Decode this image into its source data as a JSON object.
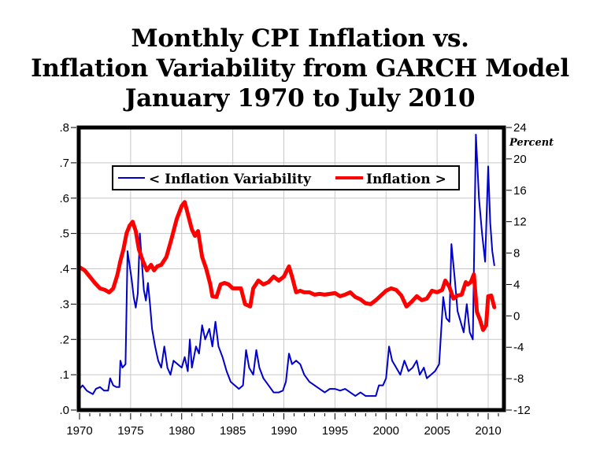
{
  "chart_data": {
    "type": "line",
    "title": [
      "Monthly CPI Inflation vs.",
      "Inflation Variability from GARCH Model",
      "January 1970 to July 2010"
    ],
    "xlabel": "",
    "xlim": [
      1970,
      2011.5
    ],
    "x_ticks": [
      "1970",
      "1975",
      "1980",
      "1985",
      "1990",
      "1995",
      "2000",
      "2005",
      "2010"
    ],
    "left_axis": {
      "label": "",
      "ylim": [
        0,
        0.8
      ],
      "ticks": [
        ".0",
        ".1",
        ".2",
        ".3",
        ".4",
        ".5",
        ".6",
        ".7",
        ".8"
      ]
    },
    "right_axis": {
      "label": "Percent",
      "ylim": [
        -12,
        24
      ],
      "ticks": [
        "-12",
        "-8",
        "-4",
        "0",
        "4",
        "8",
        "12",
        "16",
        "20",
        "24"
      ]
    },
    "grid": true,
    "legend_position": "top-left",
    "series": [
      {
        "name": "< Inflation Variability",
        "axis": "left",
        "color": "#0000cc",
        "points": [
          [
            1970.0,
            0.06
          ],
          [
            1970.3,
            0.07
          ],
          [
            1970.7,
            0.055
          ],
          [
            1971.0,
            0.05
          ],
          [
            1971.3,
            0.045
          ],
          [
            1971.6,
            0.06
          ],
          [
            1972.0,
            0.065
          ],
          [
            1972.4,
            0.055
          ],
          [
            1972.8,
            0.055
          ],
          [
            1973.0,
            0.09
          ],
          [
            1973.3,
            0.07
          ],
          [
            1973.6,
            0.065
          ],
          [
            1973.9,
            0.065
          ],
          [
            1974.0,
            0.14
          ],
          [
            1974.2,
            0.12
          ],
          [
            1974.5,
            0.13
          ],
          [
            1974.7,
            0.45
          ],
          [
            1974.9,
            0.41
          ],
          [
            1975.1,
            0.37
          ],
          [
            1975.3,
            0.32
          ],
          [
            1975.5,
            0.29
          ],
          [
            1975.7,
            0.33
          ],
          [
            1975.9,
            0.5
          ],
          [
            1976.1,
            0.42
          ],
          [
            1976.3,
            0.34
          ],
          [
            1976.5,
            0.31
          ],
          [
            1976.7,
            0.36
          ],
          [
            1976.9,
            0.3
          ],
          [
            1977.1,
            0.23
          ],
          [
            1977.4,
            0.18
          ],
          [
            1977.7,
            0.14
          ],
          [
            1978.0,
            0.12
          ],
          [
            1978.3,
            0.18
          ],
          [
            1978.6,
            0.12
          ],
          [
            1978.9,
            0.1
          ],
          [
            1979.2,
            0.14
          ],
          [
            1979.6,
            0.13
          ],
          [
            1980.0,
            0.12
          ],
          [
            1980.3,
            0.15
          ],
          [
            1980.6,
            0.11
          ],
          [
            1980.8,
            0.2
          ],
          [
            1981.0,
            0.12
          ],
          [
            1981.4,
            0.18
          ],
          [
            1981.7,
            0.16
          ],
          [
            1982.0,
            0.24
          ],
          [
            1982.3,
            0.2
          ],
          [
            1982.7,
            0.23
          ],
          [
            1983.0,
            0.18
          ],
          [
            1983.3,
            0.25
          ],
          [
            1983.6,
            0.18
          ],
          [
            1984.0,
            0.15
          ],
          [
            1984.4,
            0.11
          ],
          [
            1984.8,
            0.08
          ],
          [
            1985.2,
            0.07
          ],
          [
            1985.6,
            0.06
          ],
          [
            1986.0,
            0.07
          ],
          [
            1986.3,
            0.17
          ],
          [
            1986.6,
            0.12
          ],
          [
            1987.0,
            0.1
          ],
          [
            1987.3,
            0.17
          ],
          [
            1987.6,
            0.12
          ],
          [
            1988.0,
            0.09
          ],
          [
            1988.5,
            0.07
          ],
          [
            1989.0,
            0.05
          ],
          [
            1989.5,
            0.05
          ],
          [
            1989.9,
            0.055
          ],
          [
            1990.2,
            0.08
          ],
          [
            1990.5,
            0.16
          ],
          [
            1990.8,
            0.13
          ],
          [
            1991.2,
            0.14
          ],
          [
            1991.6,
            0.13
          ],
          [
            1992.0,
            0.1
          ],
          [
            1992.5,
            0.08
          ],
          [
            1993.0,
            0.07
          ],
          [
            1993.5,
            0.06
          ],
          [
            1994.0,
            0.05
          ],
          [
            1994.5,
            0.06
          ],
          [
            1995.0,
            0.06
          ],
          [
            1995.5,
            0.055
          ],
          [
            1996.0,
            0.06
          ],
          [
            1996.5,
            0.05
          ],
          [
            1997.0,
            0.04
          ],
          [
            1997.5,
            0.05
          ],
          [
            1998.0,
            0.04
          ],
          [
            1998.5,
            0.04
          ],
          [
            1999.0,
            0.04
          ],
          [
            1999.3,
            0.07
          ],
          [
            1999.7,
            0.07
          ],
          [
            2000.0,
            0.09
          ],
          [
            2000.3,
            0.18
          ],
          [
            2000.6,
            0.14
          ],
          [
            2001.0,
            0.12
          ],
          [
            2001.4,
            0.1
          ],
          [
            2001.8,
            0.14
          ],
          [
            2002.2,
            0.11
          ],
          [
            2002.6,
            0.12
          ],
          [
            2003.0,
            0.14
          ],
          [
            2003.3,
            0.1
          ],
          [
            2003.7,
            0.12
          ],
          [
            2004.0,
            0.09
          ],
          [
            2004.4,
            0.1
          ],
          [
            2004.8,
            0.11
          ],
          [
            2005.2,
            0.13
          ],
          [
            2005.6,
            0.32
          ],
          [
            2005.9,
            0.26
          ],
          [
            2006.2,
            0.25
          ],
          [
            2006.4,
            0.47
          ],
          [
            2006.7,
            0.38
          ],
          [
            2007.0,
            0.28
          ],
          [
            2007.3,
            0.25
          ],
          [
            2007.6,
            0.22
          ],
          [
            2007.9,
            0.3
          ],
          [
            2008.2,
            0.22
          ],
          [
            2008.5,
            0.2
          ],
          [
            2008.8,
            0.78
          ],
          [
            2009.1,
            0.6
          ],
          [
            2009.4,
            0.5
          ],
          [
            2009.7,
            0.42
          ],
          [
            2010.0,
            0.69
          ],
          [
            2010.2,
            0.53
          ],
          [
            2010.4,
            0.45
          ],
          [
            2010.6,
            0.41
          ]
        ]
      },
      {
        "name": "Inflation >",
        "axis": "right",
        "color": "#ff0000",
        "points": [
          [
            1970.0,
            6.2
          ],
          [
            1970.5,
            5.8
          ],
          [
            1971.0,
            5.0
          ],
          [
            1971.5,
            4.2
          ],
          [
            1972.0,
            3.5
          ],
          [
            1972.5,
            3.3
          ],
          [
            1972.9,
            3.0
          ],
          [
            1973.3,
            3.5
          ],
          [
            1973.7,
            5.2
          ],
          [
            1974.0,
            7.0
          ],
          [
            1974.3,
            8.5
          ],
          [
            1974.6,
            10.5
          ],
          [
            1974.9,
            11.5
          ],
          [
            1975.2,
            12.0
          ],
          [
            1975.5,
            10.8
          ],
          [
            1975.8,
            8.5
          ],
          [
            1976.2,
            7.0
          ],
          [
            1976.6,
            5.8
          ],
          [
            1977.0,
            6.5
          ],
          [
            1977.3,
            5.8
          ],
          [
            1977.6,
            6.3
          ],
          [
            1978.0,
            6.5
          ],
          [
            1978.5,
            7.5
          ],
          [
            1979.0,
            9.8
          ],
          [
            1979.5,
            12.3
          ],
          [
            1980.0,
            14.0
          ],
          [
            1980.3,
            14.5
          ],
          [
            1980.6,
            13.0
          ],
          [
            1981.0,
            11.0
          ],
          [
            1981.3,
            10.2
          ],
          [
            1981.6,
            10.8
          ],
          [
            1982.0,
            7.5
          ],
          [
            1982.4,
            6.0
          ],
          [
            1982.8,
            4.0
          ],
          [
            1983.0,
            2.5
          ],
          [
            1983.4,
            2.4
          ],
          [
            1983.8,
            4.0
          ],
          [
            1984.2,
            4.2
          ],
          [
            1984.6,
            4.0
          ],
          [
            1985.0,
            3.5
          ],
          [
            1985.4,
            3.5
          ],
          [
            1985.8,
            3.5
          ],
          [
            1986.2,
            1.5
          ],
          [
            1986.7,
            1.2
          ],
          [
            1987.0,
            3.5
          ],
          [
            1987.5,
            4.5
          ],
          [
            1988.0,
            4.0
          ],
          [
            1988.5,
            4.3
          ],
          [
            1989.0,
            5.0
          ],
          [
            1989.5,
            4.5
          ],
          [
            1990.0,
            5.0
          ],
          [
            1990.5,
            6.3
          ],
          [
            1990.8,
            5.0
          ],
          [
            1991.2,
            3.0
          ],
          [
            1991.6,
            3.2
          ],
          [
            1992.0,
            3.0
          ],
          [
            1992.5,
            3.0
          ],
          [
            1993.0,
            2.7
          ],
          [
            1993.5,
            2.8
          ],
          [
            1994.0,
            2.7
          ],
          [
            1994.5,
            2.8
          ],
          [
            1995.0,
            2.9
          ],
          [
            1995.5,
            2.5
          ],
          [
            1996.0,
            2.7
          ],
          [
            1996.5,
            3.0
          ],
          [
            1997.0,
            2.4
          ],
          [
            1997.5,
            2.1
          ],
          [
            1998.0,
            1.6
          ],
          [
            1998.5,
            1.5
          ],
          [
            1999.0,
            2.0
          ],
          [
            1999.5,
            2.6
          ],
          [
            2000.0,
            3.2
          ],
          [
            2000.5,
            3.5
          ],
          [
            2001.0,
            3.3
          ],
          [
            2001.5,
            2.6
          ],
          [
            2002.0,
            1.2
          ],
          [
            2002.5,
            1.8
          ],
          [
            2003.0,
            2.5
          ],
          [
            2003.5,
            2.0
          ],
          [
            2004.0,
            2.2
          ],
          [
            2004.5,
            3.2
          ],
          [
            2005.0,
            3.0
          ],
          [
            2005.5,
            3.3
          ],
          [
            2005.8,
            4.5
          ],
          [
            2006.2,
            3.7
          ],
          [
            2006.6,
            2.2
          ],
          [
            2007.0,
            2.6
          ],
          [
            2007.4,
            2.7
          ],
          [
            2007.8,
            4.3
          ],
          [
            2008.0,
            4.0
          ],
          [
            2008.3,
            4.3
          ],
          [
            2008.6,
            5.3
          ],
          [
            2008.9,
            0.5
          ],
          [
            2009.2,
            -0.5
          ],
          [
            2009.5,
            -1.8
          ],
          [
            2009.8,
            -1.2
          ],
          [
            2010.0,
            2.5
          ],
          [
            2010.3,
            2.6
          ],
          [
            2010.6,
            1.1
          ]
        ]
      }
    ]
  }
}
